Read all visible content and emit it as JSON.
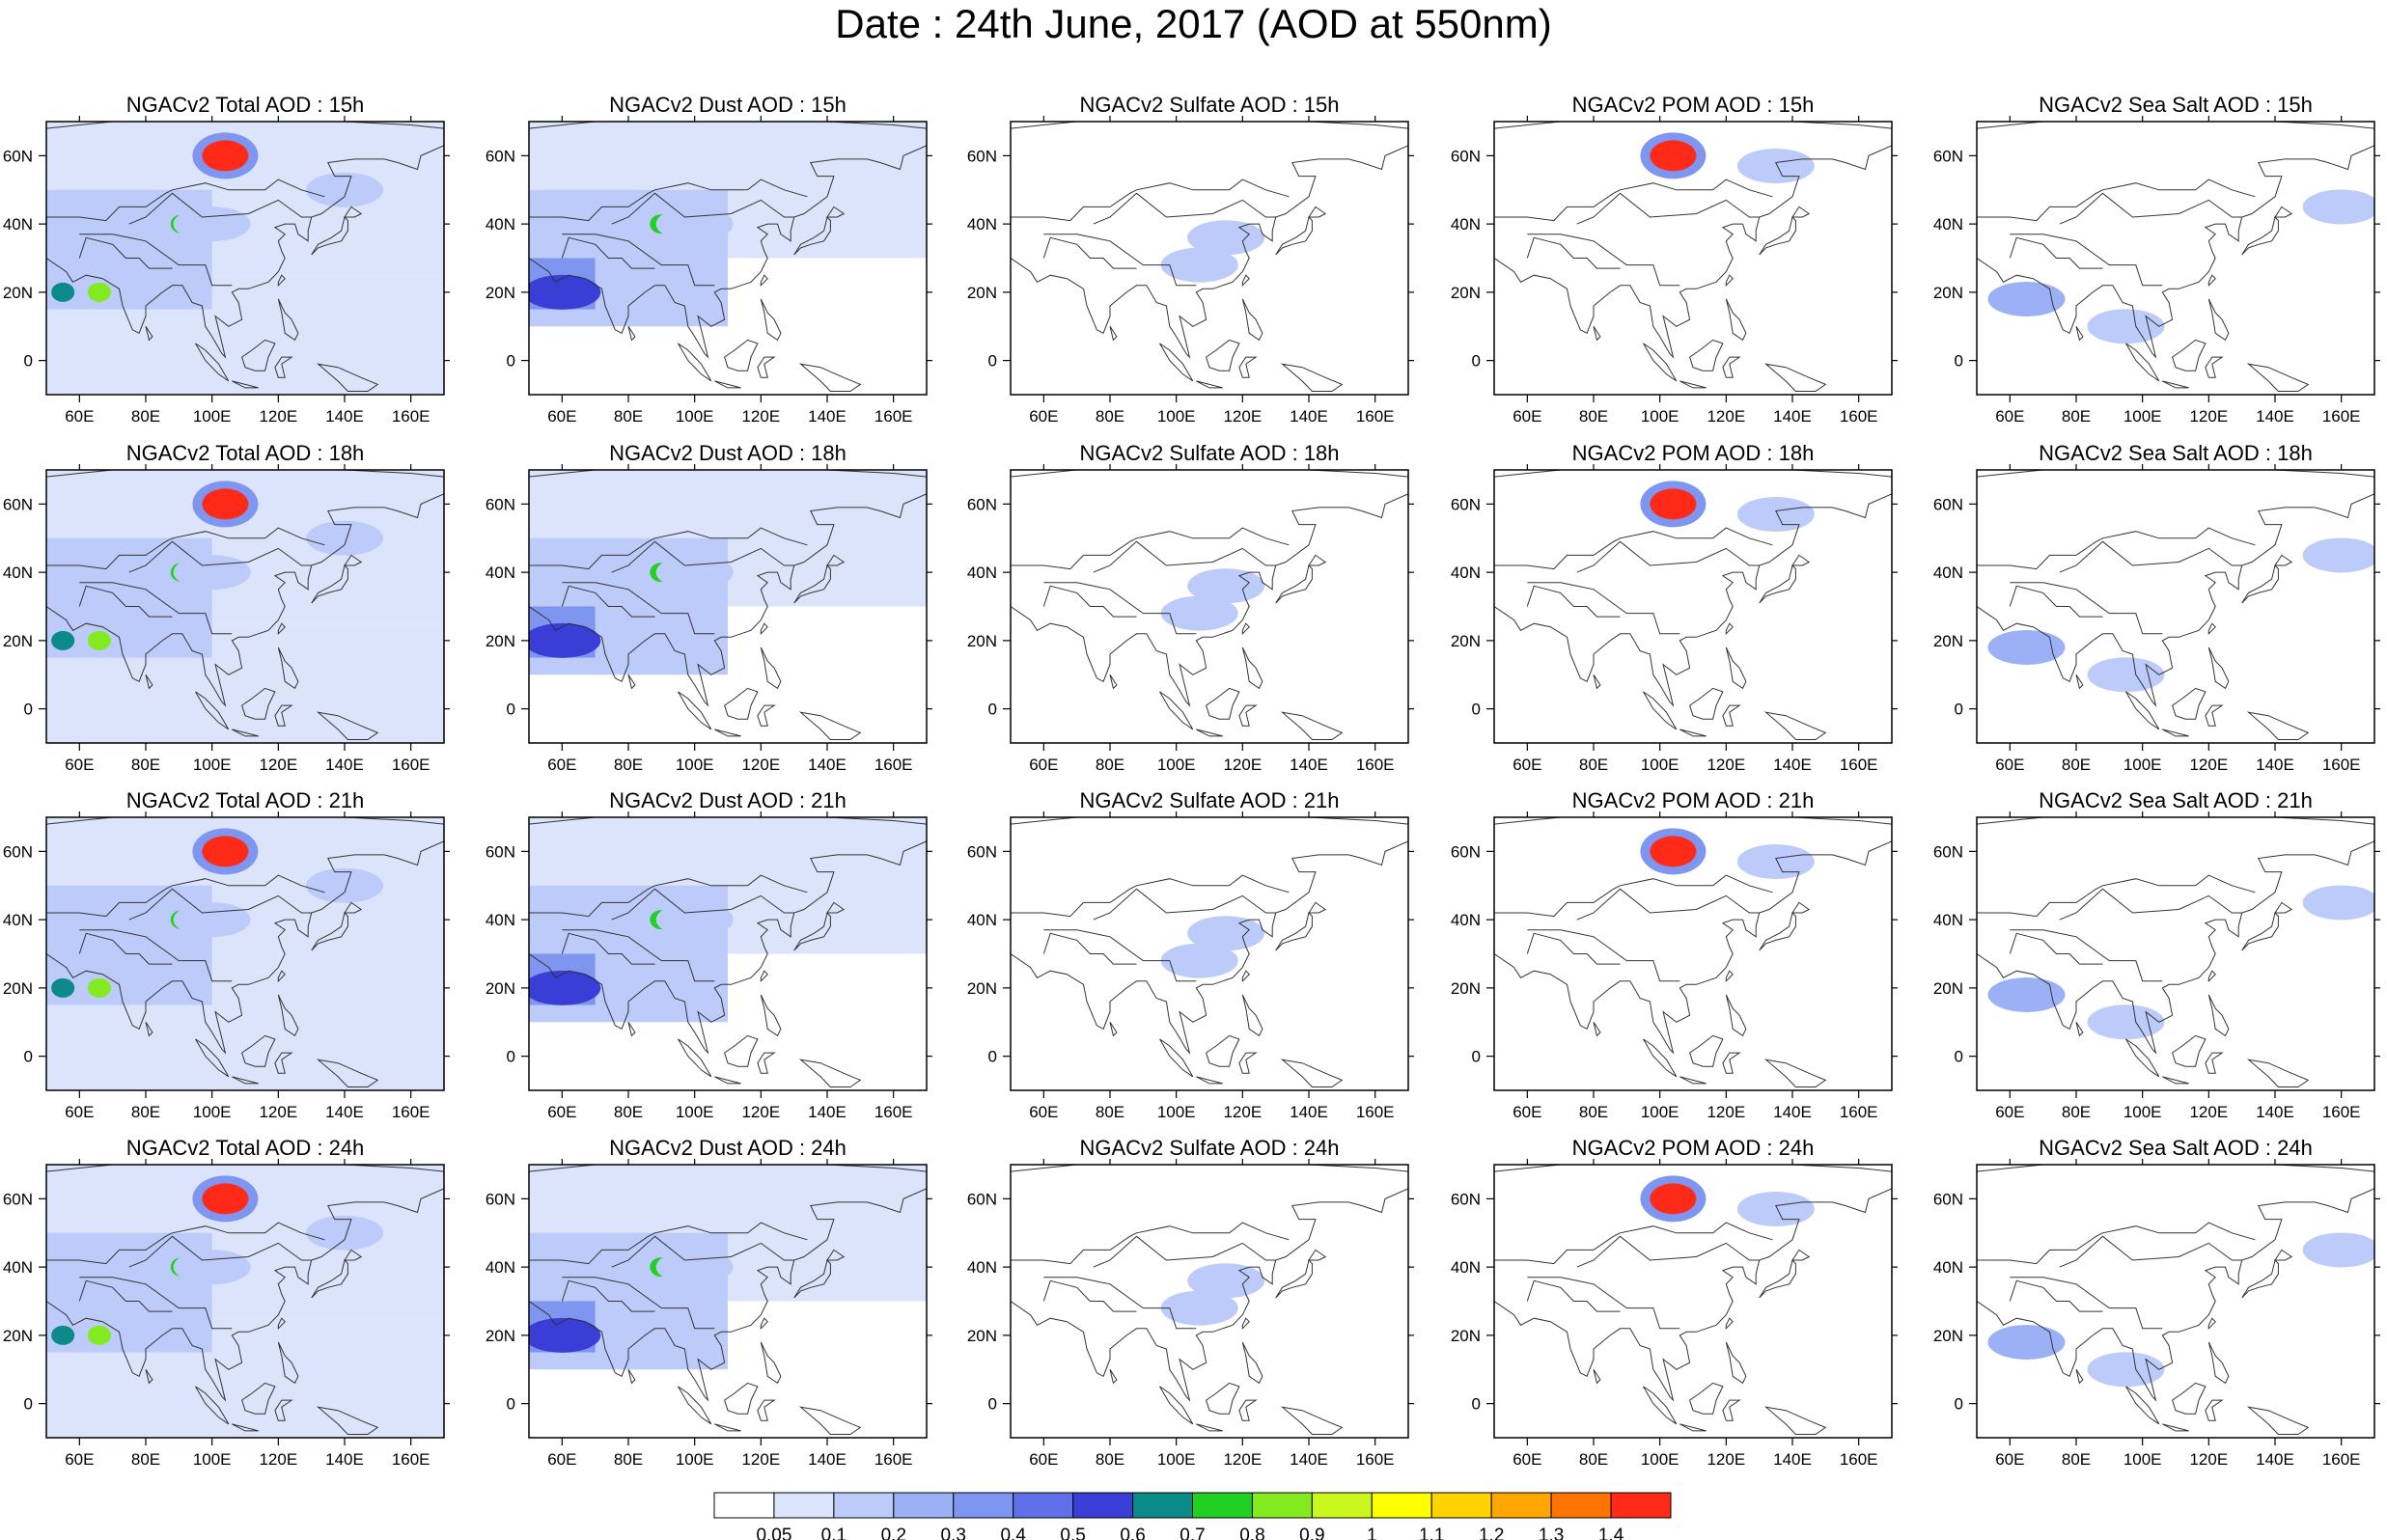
{
  "figure": {
    "title": "Date : 24th June, 2017 (AOD at 550nm)"
  },
  "panels": [
    [
      "NGACv2 Total AOD : 15h",
      "NGACv2 Dust AOD : 15h",
      "NGACv2 Sulfate AOD : 15h",
      "NGACv2 POM AOD : 15h",
      "NGACv2 Sea Salt AOD : 15h"
    ],
    [
      "NGACv2 Total AOD : 18h",
      "NGACv2 Dust AOD : 18h",
      "NGACv2 Sulfate AOD : 18h",
      "NGACv2 POM AOD : 18h",
      "NGACv2 Sea Salt AOD : 18h"
    ],
    [
      "NGACv2 Total AOD : 21h",
      "NGACv2 Dust AOD : 21h",
      "NGACv2 Sulfate AOD : 21h",
      "NGACv2 POM AOD : 21h",
      "NGACv2 Sea Salt AOD : 21h"
    ],
    [
      "NGACv2 Total AOD : 24h",
      "NGACv2 Dust AOD : 24h",
      "NGACv2 Sulfate AOD : 24h",
      "NGACv2 POM AOD : 24h",
      "NGACv2 Sea Salt  AOD : 24h"
    ]
  ],
  "map": {
    "lon_range": [
      50,
      170
    ],
    "lat_range": [
      -10,
      70
    ],
    "lon_ticks": [
      60,
      80,
      100,
      120,
      140,
      160
    ],
    "lon_tick_labels": [
      "60E",
      "80E",
      "100E",
      "120E",
      "140E",
      "160E"
    ],
    "lat_ticks": [
      0,
      20,
      40,
      60
    ],
    "lat_tick_labels": [
      "0",
      "20N",
      "40N",
      "60N"
    ]
  },
  "colorbar": {
    "labels": [
      "0.05",
      "0.1",
      "0.2",
      "0.3",
      "0.4",
      "0.5",
      "0.6",
      "0.7",
      "0.8",
      "0.9",
      "1",
      "1.1",
      "1.2",
      "1.3",
      "1.4"
    ],
    "colors": [
      "#ffffff",
      "#dbe4fb",
      "#bccbf9",
      "#9cb1f5",
      "#7f96f0",
      "#5f70e8",
      "#3a3dd6",
      "#0c8a8a",
      "#22d024",
      "#82ea1e",
      "#c9f71e",
      "#ffff00",
      "#ffd200",
      "#ffa600",
      "#ff7300",
      "#ff2a18"
    ]
  },
  "aod_features": {
    "total": [
      {
        "lon": 104,
        "lat": 60,
        "value": 1.4
      },
      {
        "lon": 91,
        "lat": 40,
        "value": 0.75
      },
      {
        "lon": 66,
        "lat": 20,
        "value": 0.8
      },
      {
        "lon": 55,
        "lat": 20,
        "value": 0.6
      },
      {
        "lon": 100,
        "lat": 40,
        "value": 0.15
      },
      {
        "lon": 140,
        "lat": 50,
        "value": 0.1
      }
    ],
    "dust": [
      {
        "lon": 90,
        "lat": 40,
        "value": 0.75
      },
      {
        "lon": 60,
        "lat": 20,
        "value": 0.5
      },
      {
        "lon": 100,
        "lat": 40,
        "value": 0.15
      }
    ],
    "sulfate": [
      {
        "lon": 115,
        "lat": 36,
        "value": 0.1
      },
      {
        "lon": 107,
        "lat": 28,
        "value": 0.1
      }
    ],
    "pom": [
      {
        "lon": 104,
        "lat": 60,
        "value": 1.4
      },
      {
        "lon": 135,
        "lat": 57,
        "value": 0.15
      }
    ],
    "seasalt": [
      {
        "lon": 65,
        "lat": 18,
        "value": 0.2
      },
      {
        "lon": 95,
        "lat": 10,
        "value": 0.1
      },
      {
        "lon": 160,
        "lat": 45,
        "value": 0.1
      }
    ]
  }
}
